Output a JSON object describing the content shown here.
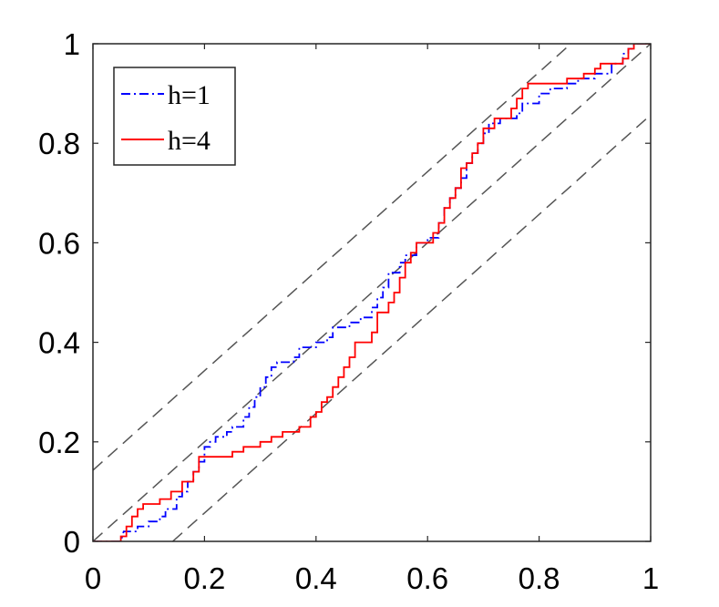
{
  "chart_data": {
    "type": "line",
    "title": "",
    "xlabel": "",
    "ylabel": "",
    "xlim": [
      0,
      1
    ],
    "ylim": [
      0,
      1
    ],
    "grid": false,
    "legend_position": "top-left",
    "x_ticks": [
      0,
      0.2,
      0.4,
      0.6,
      0.8,
      1
    ],
    "x_tick_labels": [
      "0",
      "0.2",
      "0.4",
      "0.6",
      "0.8",
      "1"
    ],
    "y_ticks": [
      0,
      0.2,
      0.4,
      0.6,
      0.8,
      1
    ],
    "y_tick_labels": [
      "0",
      "0.2",
      "0.4",
      "0.6",
      "0.8",
      "1"
    ],
    "reference_lines": [
      {
        "color": "#555555",
        "style": "dashed",
        "points": [
          [
            0,
            0.143
          ],
          [
            0.857,
            1
          ]
        ]
      },
      {
        "color": "#555555",
        "style": "dashed",
        "points": [
          [
            0,
            0
          ],
          [
            1,
            1
          ]
        ]
      },
      {
        "color": "#555555",
        "style": "dashed",
        "points": [
          [
            0.143,
            0
          ],
          [
            1,
            0.857
          ]
        ]
      }
    ],
    "series": [
      {
        "name": "h=1",
        "color": "#0000ff",
        "style": "dashdot",
        "points": [
          [
            0,
            0
          ],
          [
            0.05,
            0
          ],
          [
            0.055,
            0.02
          ],
          [
            0.08,
            0.02
          ],
          [
            0.08,
            0.03
          ],
          [
            0.1,
            0.03
          ],
          [
            0.1,
            0.04
          ],
          [
            0.12,
            0.04
          ],
          [
            0.12,
            0.05
          ],
          [
            0.13,
            0.05
          ],
          [
            0.13,
            0.065
          ],
          [
            0.15,
            0.065
          ],
          [
            0.15,
            0.09
          ],
          [
            0.16,
            0.09
          ],
          [
            0.16,
            0.1
          ],
          [
            0.17,
            0.1
          ],
          [
            0.17,
            0.12
          ],
          [
            0.18,
            0.12
          ],
          [
            0.18,
            0.14
          ],
          [
            0.19,
            0.14
          ],
          [
            0.19,
            0.16
          ],
          [
            0.2,
            0.16
          ],
          [
            0.2,
            0.19
          ],
          [
            0.21,
            0.19
          ],
          [
            0.21,
            0.2
          ],
          [
            0.22,
            0.2
          ],
          [
            0.22,
            0.21
          ],
          [
            0.24,
            0.21
          ],
          [
            0.24,
            0.22
          ],
          [
            0.25,
            0.22
          ],
          [
            0.25,
            0.23
          ],
          [
            0.27,
            0.23
          ],
          [
            0.27,
            0.25
          ],
          [
            0.28,
            0.25
          ],
          [
            0.28,
            0.27
          ],
          [
            0.29,
            0.27
          ],
          [
            0.29,
            0.29
          ],
          [
            0.3,
            0.29
          ],
          [
            0.3,
            0.31
          ],
          [
            0.31,
            0.31
          ],
          [
            0.31,
            0.33
          ],
          [
            0.32,
            0.33
          ],
          [
            0.32,
            0.35
          ],
          [
            0.33,
            0.35
          ],
          [
            0.33,
            0.36
          ],
          [
            0.36,
            0.36
          ],
          [
            0.36,
            0.37
          ],
          [
            0.37,
            0.37
          ],
          [
            0.37,
            0.39
          ],
          [
            0.4,
            0.39
          ],
          [
            0.4,
            0.4
          ],
          [
            0.42,
            0.4
          ],
          [
            0.42,
            0.41
          ],
          [
            0.43,
            0.41
          ],
          [
            0.43,
            0.43
          ],
          [
            0.46,
            0.43
          ],
          [
            0.46,
            0.44
          ],
          [
            0.48,
            0.44
          ],
          [
            0.48,
            0.45
          ],
          [
            0.5,
            0.45
          ],
          [
            0.5,
            0.47
          ],
          [
            0.51,
            0.47
          ],
          [
            0.51,
            0.49
          ],
          [
            0.52,
            0.49
          ],
          [
            0.52,
            0.51
          ],
          [
            0.53,
            0.51
          ],
          [
            0.53,
            0.54
          ],
          [
            0.55,
            0.54
          ],
          [
            0.55,
            0.56
          ],
          [
            0.56,
            0.56
          ],
          [
            0.56,
            0.575
          ],
          [
            0.58,
            0.575
          ],
          [
            0.58,
            0.6
          ],
          [
            0.6,
            0.6
          ],
          [
            0.6,
            0.61
          ],
          [
            0.62,
            0.61
          ],
          [
            0.62,
            0.64
          ],
          [
            0.63,
            0.64
          ],
          [
            0.63,
            0.67
          ],
          [
            0.64,
            0.67
          ],
          [
            0.64,
            0.69
          ],
          [
            0.65,
            0.69
          ],
          [
            0.65,
            0.71
          ],
          [
            0.66,
            0.71
          ],
          [
            0.66,
            0.73
          ],
          [
            0.67,
            0.73
          ],
          [
            0.67,
            0.76
          ],
          [
            0.68,
            0.76
          ],
          [
            0.68,
            0.78
          ],
          [
            0.69,
            0.78
          ],
          [
            0.69,
            0.8
          ],
          [
            0.7,
            0.8
          ],
          [
            0.7,
            0.82
          ],
          [
            0.71,
            0.82
          ],
          [
            0.71,
            0.84
          ],
          [
            0.73,
            0.84
          ],
          [
            0.73,
            0.85
          ],
          [
            0.76,
            0.85
          ],
          [
            0.76,
            0.86
          ],
          [
            0.77,
            0.86
          ],
          [
            0.77,
            0.88
          ],
          [
            0.8,
            0.88
          ],
          [
            0.8,
            0.9
          ],
          [
            0.82,
            0.9
          ],
          [
            0.82,
            0.91
          ],
          [
            0.85,
            0.91
          ],
          [
            0.85,
            0.92
          ],
          [
            0.87,
            0.92
          ],
          [
            0.87,
            0.93
          ],
          [
            0.9,
            0.93
          ],
          [
            0.9,
            0.94
          ],
          [
            0.93,
            0.94
          ],
          [
            0.93,
            0.96
          ],
          [
            0.95,
            0.96
          ],
          [
            0.95,
            0.98
          ],
          [
            0.96,
            0.98
          ],
          [
            0.96,
            0.99
          ],
          [
            0.97,
            0.99
          ],
          [
            0.97,
            1
          ],
          [
            1,
            1
          ]
        ]
      },
      {
        "name": "h=4",
        "color": "#ff0000",
        "style": "solid",
        "points": [
          [
            0,
            0
          ],
          [
            0.05,
            0
          ],
          [
            0.05,
            0.01
          ],
          [
            0.06,
            0.01
          ],
          [
            0.06,
            0.03
          ],
          [
            0.07,
            0.03
          ],
          [
            0.07,
            0.05
          ],
          [
            0.08,
            0.05
          ],
          [
            0.08,
            0.065
          ],
          [
            0.09,
            0.065
          ],
          [
            0.09,
            0.075
          ],
          [
            0.12,
            0.075
          ],
          [
            0.12,
            0.085
          ],
          [
            0.14,
            0.085
          ],
          [
            0.14,
            0.1
          ],
          [
            0.16,
            0.1
          ],
          [
            0.16,
            0.12
          ],
          [
            0.18,
            0.12
          ],
          [
            0.18,
            0.14
          ],
          [
            0.19,
            0.14
          ],
          [
            0.19,
            0.17
          ],
          [
            0.25,
            0.17
          ],
          [
            0.25,
            0.18
          ],
          [
            0.27,
            0.18
          ],
          [
            0.27,
            0.19
          ],
          [
            0.3,
            0.19
          ],
          [
            0.3,
            0.2
          ],
          [
            0.32,
            0.2
          ],
          [
            0.32,
            0.21
          ],
          [
            0.34,
            0.21
          ],
          [
            0.34,
            0.22
          ],
          [
            0.37,
            0.22
          ],
          [
            0.37,
            0.23
          ],
          [
            0.39,
            0.23
          ],
          [
            0.39,
            0.25
          ],
          [
            0.4,
            0.25
          ],
          [
            0.4,
            0.26
          ],
          [
            0.41,
            0.26
          ],
          [
            0.41,
            0.28
          ],
          [
            0.42,
            0.28
          ],
          [
            0.42,
            0.29
          ],
          [
            0.43,
            0.29
          ],
          [
            0.43,
            0.31
          ],
          [
            0.44,
            0.31
          ],
          [
            0.44,
            0.33
          ],
          [
            0.45,
            0.33
          ],
          [
            0.45,
            0.35
          ],
          [
            0.46,
            0.35
          ],
          [
            0.46,
            0.37
          ],
          [
            0.47,
            0.37
          ],
          [
            0.47,
            0.4
          ],
          [
            0.5,
            0.4
          ],
          [
            0.5,
            0.42
          ],
          [
            0.51,
            0.42
          ],
          [
            0.51,
            0.46
          ],
          [
            0.53,
            0.46
          ],
          [
            0.53,
            0.48
          ],
          [
            0.54,
            0.48
          ],
          [
            0.54,
            0.5
          ],
          [
            0.55,
            0.5
          ],
          [
            0.55,
            0.53
          ],
          [
            0.56,
            0.53
          ],
          [
            0.56,
            0.56
          ],
          [
            0.57,
            0.56
          ],
          [
            0.57,
            0.58
          ],
          [
            0.58,
            0.58
          ],
          [
            0.58,
            0.6
          ],
          [
            0.61,
            0.6
          ],
          [
            0.61,
            0.62
          ],
          [
            0.62,
            0.62
          ],
          [
            0.62,
            0.64
          ],
          [
            0.63,
            0.64
          ],
          [
            0.63,
            0.67
          ],
          [
            0.64,
            0.67
          ],
          [
            0.64,
            0.69
          ],
          [
            0.65,
            0.69
          ],
          [
            0.65,
            0.71
          ],
          [
            0.66,
            0.71
          ],
          [
            0.66,
            0.75
          ],
          [
            0.67,
            0.75
          ],
          [
            0.67,
            0.76
          ],
          [
            0.68,
            0.76
          ],
          [
            0.68,
            0.78
          ],
          [
            0.69,
            0.78
          ],
          [
            0.69,
            0.8
          ],
          [
            0.7,
            0.8
          ],
          [
            0.7,
            0.83
          ],
          [
            0.72,
            0.83
          ],
          [
            0.72,
            0.85
          ],
          [
            0.75,
            0.85
          ],
          [
            0.75,
            0.87
          ],
          [
            0.76,
            0.87
          ],
          [
            0.76,
            0.89
          ],
          [
            0.77,
            0.89
          ],
          [
            0.77,
            0.91
          ],
          [
            0.78,
            0.91
          ],
          [
            0.78,
            0.92
          ],
          [
            0.85,
            0.92
          ],
          [
            0.85,
            0.93
          ],
          [
            0.88,
            0.93
          ],
          [
            0.88,
            0.94
          ],
          [
            0.9,
            0.94
          ],
          [
            0.9,
            0.95
          ],
          [
            0.91,
            0.95
          ],
          [
            0.91,
            0.96
          ],
          [
            0.95,
            0.96
          ],
          [
            0.95,
            0.97
          ],
          [
            0.96,
            0.97
          ],
          [
            0.96,
            0.99
          ],
          [
            0.97,
            0.99
          ],
          [
            0.97,
            1
          ],
          [
            1,
            1
          ]
        ]
      }
    ]
  }
}
